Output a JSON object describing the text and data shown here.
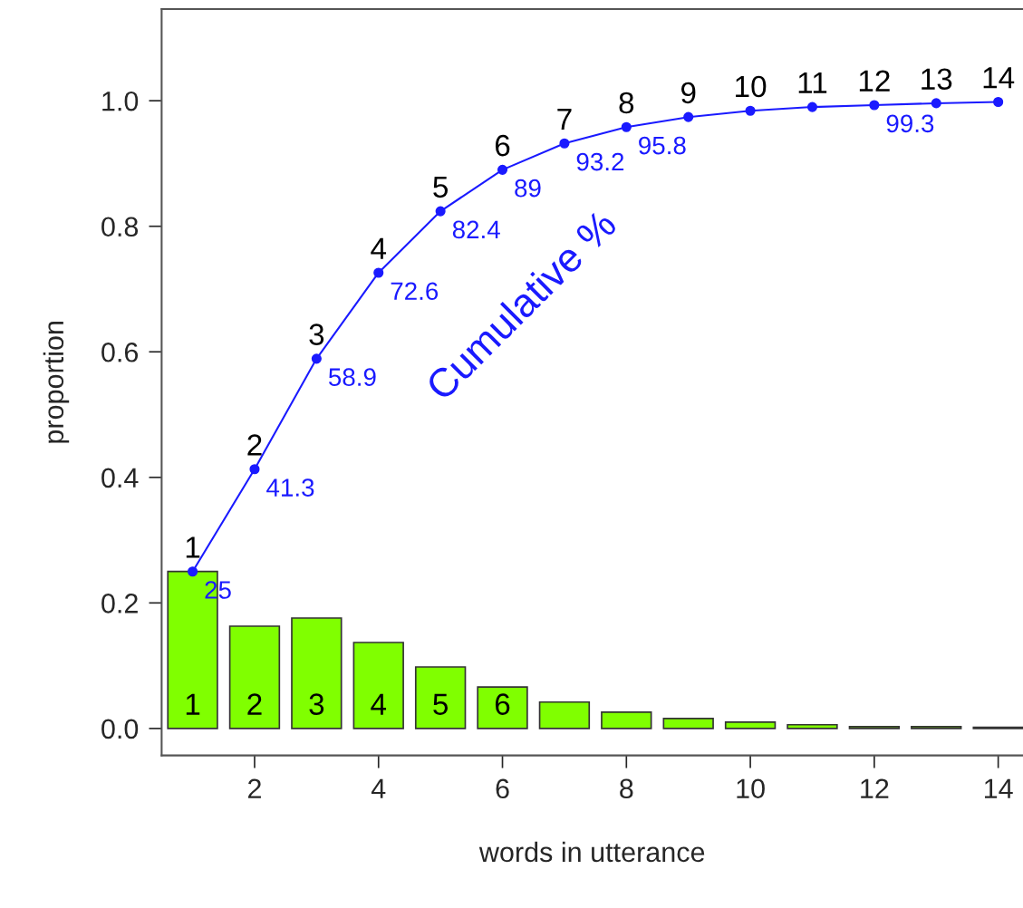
{
  "chart_data": {
    "type": "bar",
    "xlabel": "words in utterance",
    "ylabel": "proportion",
    "x": [
      1,
      2,
      3,
      4,
      5,
      6,
      7,
      8,
      9,
      10,
      11,
      12,
      13,
      14
    ],
    "series": [
      {
        "color": "#80ff00",
        "values": [
          0.25,
          0.163,
          0.176,
          0.137,
          0.098,
          0.066,
          0.042,
          0.026,
          0.016,
          0.01,
          0.006,
          0.003,
          0.003,
          0.002
        ]
      },
      {
        "type": "line",
        "color": "#1a1aff",
        "marker": "circle",
        "values": [
          0.25,
          0.413,
          0.589,
          0.726,
          0.824,
          0.89,
          0.932,
          0.958,
          0.974,
          0.984,
          0.99,
          0.993,
          0.996,
          0.998
        ]
      }
    ],
    "xlim": [
      0.5,
      14.4
    ],
    "ylim": [
      -0.043,
      1.146
    ],
    "xticks": [
      2,
      4,
      6,
      8,
      10,
      12,
      14
    ],
    "yticks": [
      {
        "value": 0,
        "label": "0.0"
      },
      0.2,
      0.4,
      0.6,
      0.8,
      {
        "value": 1,
        "label": "1.0"
      }
    ],
    "grid": false,
    "legend": false,
    "annotations": [
      {
        "text": "1",
        "x": 1,
        "y": 0.25
      },
      {
        "text": "2",
        "x": 2,
        "y": 0.413
      },
      {
        "text": "3",
        "x": 3,
        "y": 0.589
      },
      {
        "text": "4",
        "x": 4,
        "y": 0.726
      },
      {
        "text": "5",
        "x": 5,
        "y": 0.824
      },
      {
        "text": "6",
        "x": 6,
        "y": 0.89
      },
      {
        "text": "7",
        "x": 7,
        "y": 0.932
      },
      {
        "text": "8",
        "x": 8,
        "y": 0.958
      },
      {
        "text": "9",
        "x": 9,
        "y": 0.974
      },
      {
        "text": "10",
        "x": 10,
        "y": 0.984
      },
      {
        "text": "11",
        "x": 11,
        "y": 0.99
      },
      {
        "text": "12",
        "x": 12,
        "y": 0.993
      },
      {
        "text": "13",
        "x": 13,
        "y": 0.996
      },
      {
        "text": "14",
        "x": 14,
        "y": 0.998
      },
      {
        "text": "1",
        "x": 1,
        "y": 0
      },
      {
        "text": "2",
        "x": 2,
        "y": 0
      },
      {
        "text": "3",
        "x": 3,
        "y": 0
      },
      {
        "text": "4",
        "x": 4,
        "y": 0
      },
      {
        "text": "5",
        "x": 5,
        "y": 0
      },
      {
        "text": "6",
        "x": 6,
        "y": 0
      },
      {
        "text": "25",
        "x": 1,
        "y": 0.25
      },
      {
        "text": "41.3",
        "x": 2,
        "y": 0.413
      },
      {
        "text": "58.9",
        "x": 3,
        "y": 0.589
      },
      {
        "text": "72.6",
        "x": 4,
        "y": 0.726
      },
      {
        "text": "82.4",
        "x": 5,
        "y": 0.824
      },
      {
        "text": "89",
        "x": 6,
        "y": 0.89
      },
      {
        "text": "93.2",
        "x": 7,
        "y": 0.932
      },
      {
        "text": "95.8",
        "x": 8,
        "y": 0.958
      },
      {
        "text": "99.3",
        "x": 12,
        "y": 0.993
      },
      "Cumulative %"
    ]
  }
}
